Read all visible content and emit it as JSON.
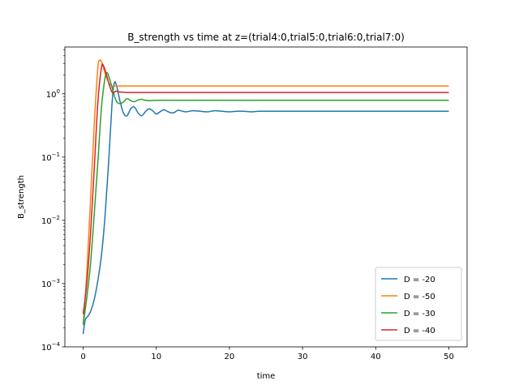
{
  "chart_data": {
    "type": "line",
    "title": "B_strength vs time at z=(trial4:0,trial5:0,trial6:0,trial7:0)",
    "xlabel": "time",
    "ylabel": "B_strength",
    "xlim": [
      -2.5,
      52.5
    ],
    "ylim": [
      0.0001,
      5.5
    ],
    "yscale": "log",
    "x_ticks": [
      {
        "value": 0,
        "label": "0"
      },
      {
        "value": 10,
        "label": "10"
      },
      {
        "value": 20,
        "label": "20"
      },
      {
        "value": 30,
        "label": "30"
      },
      {
        "value": 40,
        "label": "40"
      },
      {
        "value": 50,
        "label": "50"
      }
    ],
    "y_ticks": [
      {
        "value": 0.0001,
        "base": "10",
        "exp": "−4"
      },
      {
        "value": 0.001,
        "base": "10",
        "exp": "−3"
      },
      {
        "value": 0.01,
        "base": "10",
        "exp": "−2"
      },
      {
        "value": 0.1,
        "base": "10",
        "exp": "−1"
      },
      {
        "value": 1,
        "base": "10",
        "exp": "0"
      }
    ],
    "grid": false,
    "legend_position": "lower-right",
    "series": [
      {
        "name": "D = -20",
        "color": "#1f77b4",
        "x": [
          0,
          0.3,
          0.6,
          1,
          1.5,
          2,
          2.5,
          3,
          3.5,
          4,
          4.3,
          4.6,
          5,
          5.5,
          6,
          6.5,
          7,
          7.5,
          8,
          8.5,
          9,
          9.5,
          10,
          10.5,
          11,
          11.5,
          12,
          12.5,
          13,
          14,
          15,
          16,
          17,
          18,
          19,
          20,
          21,
          22,
          23,
          24,
          25,
          27,
          30,
          35,
          40,
          45,
          50
        ],
        "y": [
          0.00016,
          0.00027,
          0.0003,
          0.00036,
          0.00055,
          0.0011,
          0.0028,
          0.012,
          0.09,
          0.85,
          1.52,
          1.3,
          0.8,
          0.5,
          0.45,
          0.58,
          0.62,
          0.5,
          0.45,
          0.52,
          0.58,
          0.54,
          0.48,
          0.52,
          0.56,
          0.53,
          0.5,
          0.51,
          0.55,
          0.52,
          0.54,
          0.53,
          0.52,
          0.54,
          0.53,
          0.52,
          0.53,
          0.53,
          0.52,
          0.53,
          0.53,
          0.53,
          0.53,
          0.53,
          0.53,
          0.53,
          0.53
        ]
      },
      {
        "name": "D = -50",
        "color": "#ff7f0e",
        "x": [
          0,
          0.5,
          1,
          1.5,
          2,
          2.3,
          2.6,
          3,
          3.5,
          4,
          4.5,
          5,
          5.5,
          6,
          8,
          10,
          20,
          30,
          40,
          50
        ],
        "y": [
          0.00022,
          0.0015,
          0.02,
          0.3,
          2.5,
          3.4,
          3.0,
          2.1,
          1.5,
          1.32,
          1.34,
          1.33,
          1.33,
          1.33,
          1.33,
          1.33,
          1.33,
          1.33,
          1.33,
          1.33
        ]
      },
      {
        "name": "D = -30",
        "color": "#2ca02c",
        "x": [
          0,
          0.5,
          1,
          1.5,
          2,
          2.5,
          3,
          3.3,
          3.7,
          4,
          4.5,
          5,
          5.5,
          6,
          6.5,
          7,
          7.5,
          8,
          8.5,
          9,
          10,
          11,
          12,
          15,
          20,
          30,
          40,
          50
        ],
        "y": [
          0.00023,
          0.0006,
          0.002,
          0.012,
          0.08,
          0.6,
          1.8,
          2.15,
          1.6,
          1.2,
          0.78,
          0.7,
          0.74,
          0.84,
          0.78,
          0.75,
          0.8,
          0.82,
          0.79,
          0.78,
          0.79,
          0.79,
          0.79,
          0.79,
          0.79,
          0.79,
          0.79,
          0.79
        ]
      },
      {
        "name": "D = -40",
        "color": "#d62728",
        "x": [
          0,
          0.5,
          1,
          1.5,
          2,
          2.5,
          2.8,
          3.2,
          3.6,
          4,
          4.5,
          5,
          5.5,
          6,
          7,
          8,
          10,
          20,
          30,
          40,
          50
        ],
        "y": [
          0.00033,
          0.001,
          0.006,
          0.06,
          0.7,
          2.6,
          2.75,
          2.0,
          1.35,
          1.05,
          1.1,
          1.07,
          1.06,
          1.05,
          1.05,
          1.05,
          1.05,
          1.05,
          1.05,
          1.05,
          1.05
        ]
      }
    ]
  }
}
